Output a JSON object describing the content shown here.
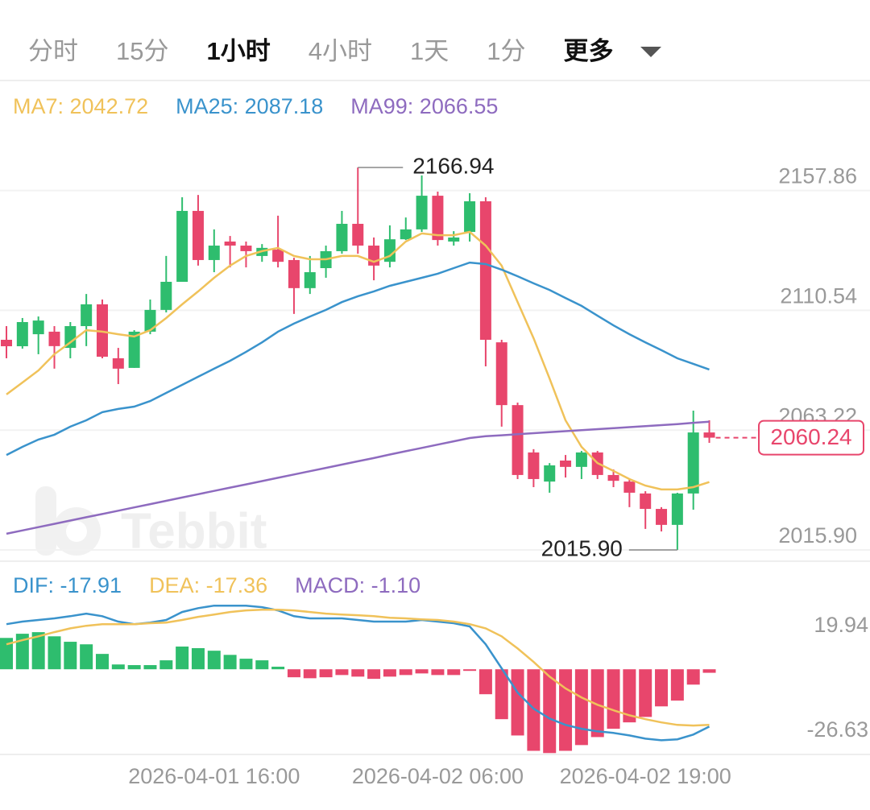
{
  "tabs": [
    {
      "label": "分时"
    },
    {
      "label": "15分"
    },
    {
      "label": "1小时",
      "active": true
    },
    {
      "label": "4小时"
    },
    {
      "label": "1天"
    },
    {
      "label": "1分"
    },
    {
      "label": "更多",
      "dropdown": true
    }
  ],
  "chart_data": [
    {
      "type": "candlestick",
      "watermark": "Tebbit",
      "up_color": "#2ebd6e",
      "down_color": "#e8466c",
      "open": [
        2098.9,
        2096.35,
        2101.1,
        2102.1,
        2095.7,
        2104.3,
        2112.9,
        2091.6,
        2087.8,
        2102.1,
        2110.7,
        2121.8,
        2149.8,
        2130.4,
        2137.7,
        2136.1,
        2132.0,
        2134.5,
        2130.4,
        2119.3,
        2127.2,
        2133.9,
        2144.7,
        2136.1,
        2129.7,
        2138.6,
        2142.5,
        2155.8,
        2137.7,
        2141.5,
        2153.6,
        2097.9,
        2073.1,
        2054.4,
        2042.9,
        2051.2,
        2048.7,
        2054.4,
        2045.5,
        2042.9,
        2038.2,
        2032.1,
        2025.8,
        2038.2,
        2062.3
      ],
      "high": [
        2104.3,
        2107.5,
        2108.1,
        2104.3,
        2105.9,
        2117.0,
        2114.8,
        2095.7,
        2102.7,
        2114.8,
        2132.0,
        2155.2,
        2156.1,
        2142.5,
        2139.9,
        2137.7,
        2136.7,
        2147.9,
        2131.3,
        2132.0,
        2136.1,
        2149.8,
        2166.94,
        2139.3,
        2144.1,
        2147.2,
        2163.8,
        2157.4,
        2141.8,
        2156.8,
        2155.2,
        2098.9,
        2074.1,
        2055.7,
        2050.2,
        2053.4,
        2055.0,
        2055.0,
        2047.7,
        2043.9,
        2039.1,
        2032.8,
        2038.5,
        2070.9,
        2067.1
      ],
      "low": [
        2091.6,
        2095.4,
        2093.2,
        2087.5,
        2091.6,
        2096.4,
        2091.6,
        2081.4,
        2087.8,
        2101.1,
        2109.7,
        2121.8,
        2128.2,
        2125.6,
        2127.5,
        2127.5,
        2129.7,
        2127.5,
        2109.1,
        2117.0,
        2123.4,
        2132.9,
        2132.9,
        2122.4,
        2127.5,
        2138.3,
        2141.5,
        2136.1,
        2136.1,
        2137.7,
        2088.4,
        2064.6,
        2043.9,
        2040.7,
        2038.5,
        2044.5,
        2043.9,
        2043.9,
        2040.7,
        2032.8,
        2024.2,
        2023.2,
        2015.9,
        2031.8,
        2058.2
      ],
      "close": [
        2096.35,
        2105.9,
        2106.5,
        2096.4,
        2104.3,
        2112.9,
        2092.2,
        2087.5,
        2102.1,
        2110.7,
        2121.8,
        2149.8,
        2130.4,
        2136.1,
        2136.1,
        2133.9,
        2135.2,
        2129.7,
        2119.3,
        2125.6,
        2133.9,
        2144.7,
        2136.1,
        2128.2,
        2138.6,
        2142.5,
        2155.8,
        2138.3,
        2139.3,
        2153.6,
        2098.9,
        2073.1,
        2045.5,
        2043.9,
        2049.3,
        2048.7,
        2054.4,
        2045.5,
        2043.2,
        2038.5,
        2032.1,
        2025.8,
        2038.2,
        2062.3,
        2060.24
      ],
      "series": [
        {
          "name": "MA7: 2042.72",
          "color": "#f0c25a",
          "values": [
            2077.3,
            2082.0,
            2086.8,
            2093.2,
            2097.9,
            2102.7,
            2102.1,
            2101.1,
            2100.2,
            2102.7,
            2107.5,
            2112.9,
            2118.0,
            2123.4,
            2128.2,
            2132.0,
            2133.9,
            2135.2,
            2132.0,
            2130.7,
            2130.7,
            2132.0,
            2132.0,
            2129.7,
            2132.0,
            2137.7,
            2140.9,
            2140.2,
            2140.2,
            2141.5,
            2136.1,
            2128.2,
            2113.8,
            2099.5,
            2083.6,
            2067.1,
            2056.6,
            2050.2,
            2047.1,
            2043.9,
            2041.3,
            2039.8,
            2039.8,
            2040.7,
            2042.72
          ]
        },
        {
          "name": "MA25: 2087.18",
          "color": "#3a93cc",
          "values": [
            2053.4,
            2056.6,
            2059.5,
            2061.4,
            2064.6,
            2067.1,
            2070.3,
            2071.6,
            2072.5,
            2074.7,
            2077.9,
            2081.1,
            2084.3,
            2087.5,
            2090.6,
            2094.1,
            2097.9,
            2102.1,
            2105.3,
            2108.1,
            2110.7,
            2113.8,
            2116.1,
            2118.0,
            2120.2,
            2121.8,
            2123.4,
            2125.0,
            2127.2,
            2129.4,
            2128.8,
            2126.6,
            2124.0,
            2121.2,
            2118.6,
            2115.4,
            2112.3,
            2108.4,
            2104.6,
            2101.1,
            2097.9,
            2094.8,
            2091.6,
            2089.4,
            2087.18
          ]
        },
        {
          "name": "MA99: 2066.55",
          "color": "#8e6bbf",
          "values": [
            2022.3,
            2023.6,
            2024.9,
            2026.2,
            2027.5,
            2028.8,
            2030.1,
            2031.4,
            2032.7,
            2034.0,
            2035.3,
            2036.6,
            2037.9,
            2039.2,
            2040.5,
            2041.8,
            2043.1,
            2044.4,
            2045.7,
            2047.0,
            2048.3,
            2049.6,
            2050.9,
            2052.2,
            2053.6,
            2054.9,
            2056.2,
            2057.5,
            2058.8,
            2060.1,
            2060.8,
            2061.2,
            2061.6,
            2062.0,
            2062.4,
            2062.8,
            2063.2,
            2063.6,
            2064.0,
            2064.4,
            2064.8,
            2065.2,
            2065.6,
            2066.1,
            2066.55
          ]
        }
      ],
      "annotations": [
        {
          "text": "2166.94",
          "value": 2166.94
        },
        {
          "text": "2015.90",
          "value": 2015.9
        }
      ],
      "last_price": 2060.24,
      "ylim": [
        2011.45,
        2201.3
      ],
      "yticks": [
        2157.86,
        2110.54,
        2063.22,
        {
          "value": 2015.9,
          "label": "2015.90"
        }
      ],
      "grid": true
    },
    {
      "type": "macd",
      "categories": [
        null,
        null,
        null,
        null,
        null,
        null,
        null,
        null,
        null,
        null,
        null,
        null,
        null,
        "2026-04-01 16:00",
        null,
        null,
        null,
        null,
        null,
        null,
        null,
        null,
        null,
        null,
        null,
        null,
        null,
        "2026-04-02 06:00",
        null,
        null,
        null,
        null,
        null,
        null,
        null,
        null,
        null,
        null,
        null,
        null,
        "2026-04-02 19:00",
        null,
        null,
        null,
        null
      ],
      "up_color": "#2ebd6e",
      "down_color": "#e8466c",
      "series": [
        {
          "name": "DIF: -17.91",
          "color": "#3a93cc",
          "kind": "line",
          "values": [
            14.1,
            14.9,
            15.4,
            15.9,
            16.6,
            17.4,
            16.6,
            14.9,
            14.1,
            14.6,
            15.4,
            17.9,
            19.1,
            19.9,
            19.9,
            19.9,
            19.4,
            18.4,
            16.6,
            15.9,
            15.9,
            15.9,
            15.4,
            14.9,
            14.9,
            14.9,
            15.4,
            14.9,
            14.4,
            13.4,
            7.8,
            0.3,
            -7.3,
            -12.3,
            -15.4,
            -17.4,
            -18.6,
            -19.4,
            -19.9,
            -20.7,
            -21.7,
            -22.2,
            -21.9,
            -20.4,
            -17.91
          ]
        },
        {
          "name": "DEA: -17.36",
          "color": "#f0c25a",
          "kind": "line",
          "values": [
            7.8,
            9.1,
            10.3,
            11.6,
            12.8,
            13.6,
            14.1,
            14.1,
            14.1,
            14.4,
            14.6,
            15.4,
            16.4,
            17.1,
            17.9,
            18.4,
            18.6,
            18.6,
            18.4,
            17.9,
            17.4,
            17.1,
            16.9,
            16.6,
            16.1,
            15.9,
            15.6,
            15.4,
            14.9,
            14.1,
            12.8,
            10.3,
            6.5,
            2.3,
            -2.3,
            -6.0,
            -8.8,
            -11.1,
            -12.8,
            -14.4,
            -15.6,
            -16.6,
            -17.4,
            -17.6,
            -17.36
          ]
        },
        {
          "name": "MACD: -1.10",
          "color": "#8e6bbf",
          "kind": "bar",
          "values": [
            9.8,
            11.1,
            11.6,
            10.3,
            8.6,
            7.8,
            4.8,
            1.5,
            1.3,
            1.3,
            2.8,
            7.1,
            6.6,
            5.8,
            4.5,
            3.3,
            2.8,
            0.8,
            -2.5,
            -2.8,
            -2.5,
            -1.8,
            -2.3,
            -3.0,
            -2.3,
            -1.8,
            -1.3,
            -1.8,
            -1.8,
            -0.5,
            -7.8,
            -15.6,
            -20.7,
            -25.5,
            -26.2,
            -25.5,
            -23.7,
            -21.2,
            -18.6,
            -16.6,
            -14.9,
            -11.6,
            -9.8,
            -4.8,
            -1.1
          ]
        }
      ],
      "ylim": [
        -26.63,
        19.94
      ],
      "yticks": [
        19.94,
        -26.63
      ],
      "grid": false
    }
  ]
}
